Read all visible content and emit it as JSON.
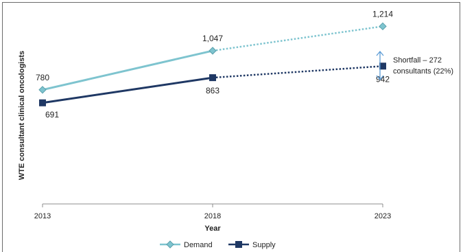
{
  "chart_data": {
    "type": "line",
    "x": [
      2013,
      2018,
      2023
    ],
    "xlabel": "Year",
    "ylabel": "WTE consultant clinical oncologists",
    "ylim": [
      0,
      1300
    ],
    "grid": false,
    "legend_position": "bottom",
    "series": [
      {
        "name": "Demand",
        "values": [
          780,
          1047,
          1214
        ],
        "labels": [
          "780",
          "1,047",
          "1,214"
        ],
        "color": "#7ec4cf",
        "marker": "diamond",
        "projected_from": 2018
      },
      {
        "name": "Supply",
        "values": [
          691,
          863,
          942
        ],
        "labels": [
          "691",
          "863",
          "942"
        ],
        "color": "#1f3864",
        "marker": "square",
        "projected_from": 2018
      }
    ],
    "annotations": [
      {
        "text_line1": "Shortfall – 272",
        "text_line2": "consultants (22%)",
        "x": 2023
      }
    ]
  }
}
